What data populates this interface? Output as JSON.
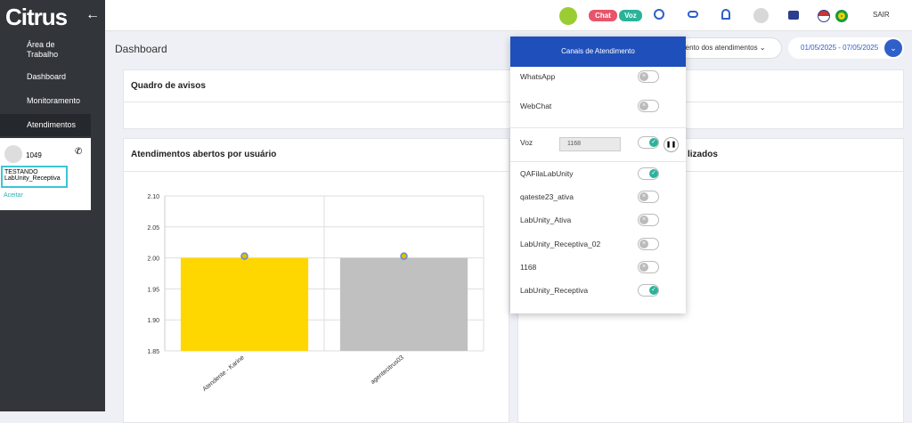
{
  "header": {
    "logo": "Citrus",
    "badges": [
      "Chat",
      "Voz"
    ],
    "logout": "SAIR"
  },
  "sidebar": {
    "items": [
      "Área de Trabalho",
      "Dashboard",
      "Monitoramento",
      "Atendimentos"
    ],
    "call": {
      "number": "1049",
      "status": "TESTANDO",
      "queue": "LabUnity_Receptiva",
      "action": "Aceitar"
    }
  },
  "page": {
    "title": "Dashboard",
    "filter": "mento dos atendimentos",
    "date_range": "01/05/2025 - 07/05/2025",
    "notices_title": "Quadro de avisos",
    "right_card_title": "lizados"
  },
  "chart_data": {
    "type": "bar",
    "title": "Atendimentos abertos por usuário",
    "categories": [
      "Atendente - Karine",
      "agentecitrus03"
    ],
    "values": [
      2.0,
      2.0
    ],
    "colors": [
      "#ffd700",
      "#c0c0c0"
    ],
    "ylim": [
      1.85,
      2.1
    ],
    "yticks": [
      {
        "value": 1.85,
        "label": "1.85"
      },
      {
        "value": 1.9,
        "label": "1.90"
      },
      {
        "value": 1.95,
        "label": "1.95"
      },
      {
        "value": 2.0,
        "label": "2.00"
      },
      {
        "value": 2.05,
        "label": "2.05"
      },
      {
        "value": 2.1,
        "label": "2.10"
      }
    ],
    "grid": true
  },
  "channels_panel": {
    "title": "Canais de Atendimento",
    "voz_select": "1168",
    "channels": [
      {
        "name": "WhatsApp",
        "on": false
      },
      {
        "name": "WebChat",
        "on": false
      },
      {
        "name": "Voz",
        "on": true
      },
      {
        "name": "QAFilaLabUnity",
        "on": true
      },
      {
        "name": "qateste23_ativa",
        "on": false
      },
      {
        "name": "LabUnity_Ativa",
        "on": false
      },
      {
        "name": "LabUnity_Receptiva_02",
        "on": false
      },
      {
        "name": "1168",
        "on": false
      },
      {
        "name": "LabUnity_Receptiva",
        "on": true
      }
    ]
  }
}
